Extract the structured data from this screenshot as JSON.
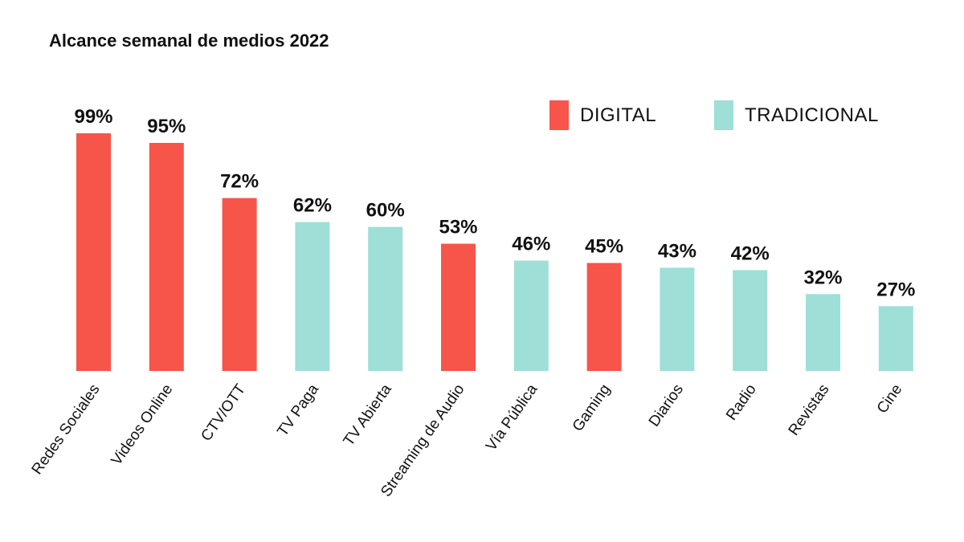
{
  "chart_data": {
    "type": "bar",
    "title": "Alcance semanal de medios 2022",
    "xlabel": "",
    "ylabel": "",
    "ylim": [
      0,
      100
    ],
    "grid": false,
    "legend_position": "top-right",
    "categories": [
      "Redes Sociales",
      "Videos Online",
      "CTV/OTT",
      "TV Paga",
      "TV Abierta",
      "Streaming de Audio",
      "Vía Pública",
      "Gaming",
      "Diarios",
      "Radio",
      "Revistas",
      "Cine"
    ],
    "values": [
      99,
      95,
      72,
      62,
      60,
      53,
      46,
      45,
      43,
      42,
      32,
      27
    ],
    "value_labels": [
      "99%",
      "95%",
      "72%",
      "62%",
      "60%",
      "53%",
      "46%",
      "45%",
      "43%",
      "42%",
      "32%",
      "27%"
    ],
    "groups": [
      "DIGITAL",
      "DIGITAL",
      "DIGITAL",
      "TRADICIONAL",
      "TRADICIONAL",
      "DIGITAL",
      "TRADICIONAL",
      "DIGITAL",
      "TRADICIONAL",
      "TRADICIONAL",
      "TRADICIONAL",
      "TRADICIONAL"
    ],
    "legend": [
      {
        "name": "DIGITAL",
        "color": "#f75549"
      },
      {
        "name": "TRADICIONAL",
        "color": "#9edfd7"
      }
    ]
  }
}
